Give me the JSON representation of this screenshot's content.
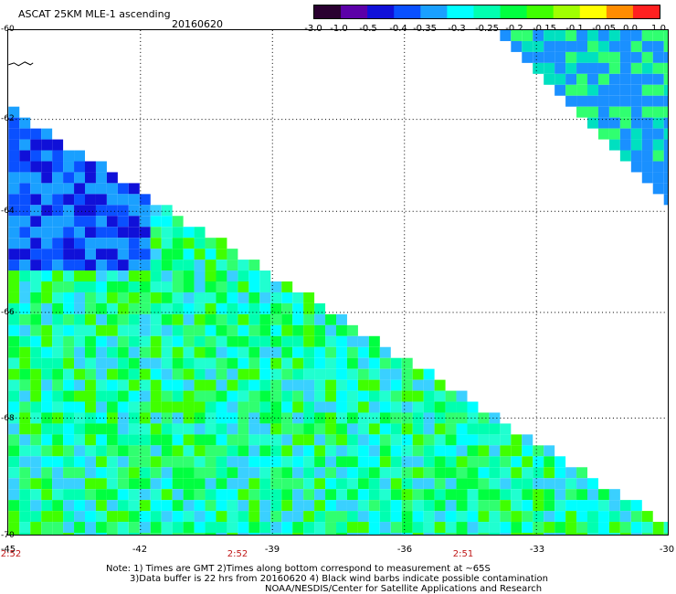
{
  "header": {
    "title": "ASCAT 25KM MLE-1 ascending",
    "date": "20160620"
  },
  "colorbar": {
    "ticks": [
      "-3.0",
      "-1.0",
      "-0.5",
      "-0.4",
      "-0.35",
      "-0.3",
      "-0.25",
      "-0.2",
      "-0.15",
      "-0.1",
      "-0.05",
      "0.0",
      "1.0"
    ],
    "colors": [
      "#2a0030",
      "#5c00a8",
      "#1010d8",
      "#0a50ff",
      "#1aa0ff",
      "#00ffff",
      "#00ffb0",
      "#00ff40",
      "#40ff00",
      "#a0ff00",
      "#ffff00",
      "#ff8c00",
      "#ff2020"
    ]
  },
  "map": {
    "lat_labels": [
      "-60",
      "-62",
      "-64",
      "-66",
      "-68",
      "-70"
    ],
    "lon_labels": [
      "-45",
      "-42",
      "-39",
      "-36",
      "-33",
      "-30"
    ],
    "time_labels": [
      "2:52",
      "2:52",
      "2:51"
    ]
  },
  "notes": {
    "line1": "Note: 1) Times are GMT 2)Times along bottom correspond to measurement at ~65S",
    "line2": "3)Data buffer is 22 hrs from 20160620 4) Black wind barbs indicate possible contamination",
    "line3": "NOAA/NESDIS/Center for Satellite Applications and Research"
  }
}
